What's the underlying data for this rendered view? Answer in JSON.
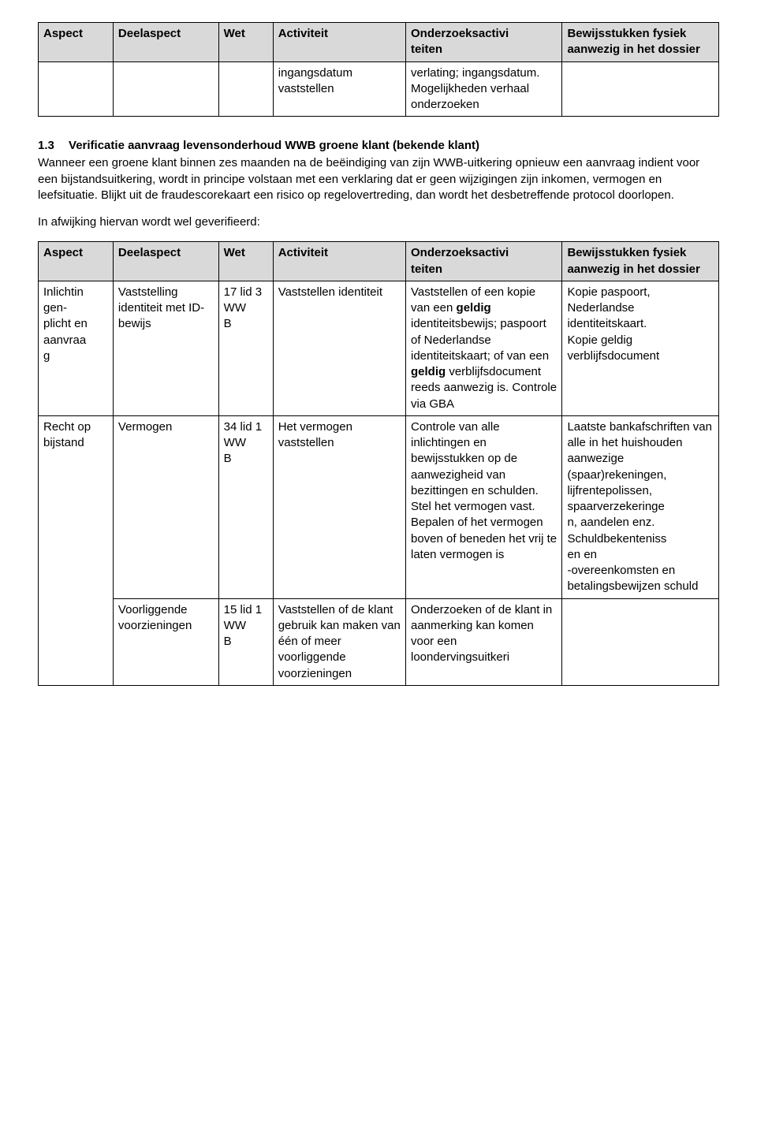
{
  "table1": {
    "headers": [
      "Aspect",
      "Deelaspect",
      "Wet",
      "Activiteit",
      "Onderzoeksactivi\nteiten",
      "Bewijsstukken fysiek aanwezig in het dossier"
    ],
    "row": {
      "aspect": "",
      "deel": "",
      "wet": "",
      "act": "ingangsdatum vaststellen",
      "ond": "verlating; ingangsdatum. Mogelijkheden verhaal onderzoeken",
      "bew": ""
    }
  },
  "section": {
    "num": "1.3",
    "title": "Verificatie aanvraag levensonderhoud WWB groene klant (bekende klant)",
    "para": "Wanneer een groene klant binnen zes maanden na de beëindiging van zijn WWB-uitkering opnieuw een aanvraag indient voor een bijstandsuitkering, wordt in principe volstaan met een verklaring dat er geen wijzigingen zijn inkomen, vermogen en leefsituatie. Blijkt uit de fraudescorekaart een risico op regelovertreding, dan wordt het desbetreffende protocol doorlopen.",
    "sub": "In afwijking hiervan wordt wel geverifieerd:"
  },
  "table2": {
    "headers": [
      "Aspect",
      "Deelaspect",
      "Wet",
      "Activiteit",
      "Onderzoeksactivi\nteiten",
      "Bewijsstukken fysiek aanwezig in het dossier"
    ],
    "rows": [
      {
        "aspect": "Inlichtin\ngen-\nplicht en\naanvraa\ng",
        "deel": "Vaststelling identiteit met ID-bewijs",
        "wet": "17 lid 3 WW\nB",
        "act": "Vaststellen identiteit",
        "ond_parts": [
          {
            "t": "Vaststellen of een kopie van een ",
            "b": false
          },
          {
            "t": "geldig",
            "b": true
          },
          {
            "t": " identiteitsbewijs; paspoort of Nederlandse identiteitskaart; of van een ",
            "b": false
          },
          {
            "t": "geldig",
            "b": true
          },
          {
            "t": " verblijfsdocument reeds aanwezig is. Controle via GBA",
            "b": false
          }
        ],
        "bew": "Kopie paspoort, Nederlandse identiteitskaart.\nKopie geldig verblijfsdocument"
      },
      {
        "aspect": "Recht op bijstand",
        "aspect_rowspan": 2,
        "deel": "Vermogen",
        "wet": "34 lid 1 WW\nB",
        "act": "Het vermogen vaststellen",
        "ond": "Controle van alle inlichtingen en bewijsstukken op de aanwezigheid van bezittingen en schulden. Stel het vermogen vast. Bepalen of het vermogen boven of beneden het vrij te laten vermogen is",
        "bew": "Laatste bankafschriften van alle in het huishouden aanwezige (spaar)rekeningen, lijfrentepolissen, spaarverzekeringe\nn, aandelen enz. Schuldbekenteniss\nen en\n-overeenkomsten en betalingsbewijzen schuld"
      },
      {
        "deel": "Voorliggende voorzieningen",
        "wet": "15 lid 1 WW\nB",
        "act": "Vaststellen of de klant gebruik kan maken van één of meer voorliggende voorzieningen",
        "ond": "Onderzoeken of de klant in aanmerking kan komen voor een loondervingsuitkeri",
        "bew": ""
      }
    ]
  }
}
